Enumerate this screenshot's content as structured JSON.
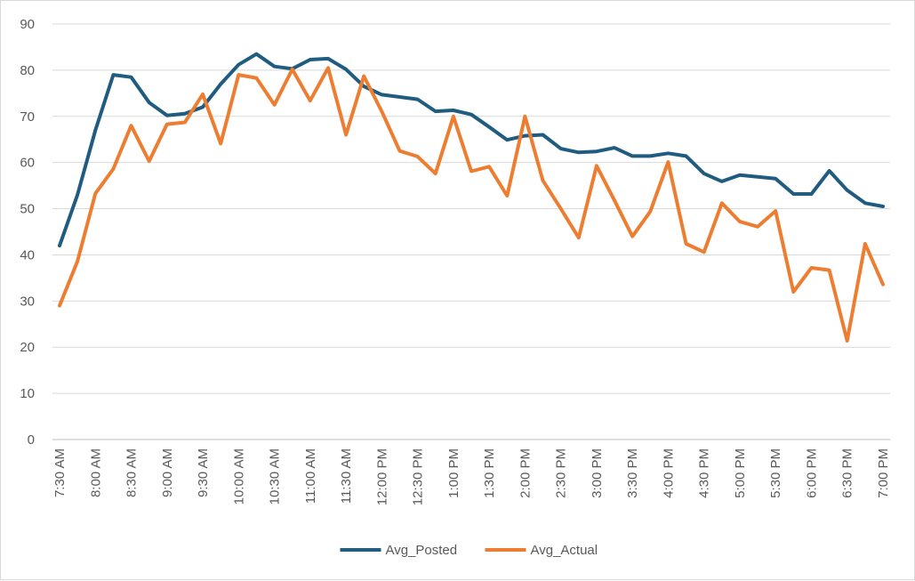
{
  "chart_data": {
    "type": "line",
    "title": "",
    "xlabel": "",
    "ylabel": "",
    "ylim": [
      0,
      90
    ],
    "y_ticks": [
      0,
      10,
      20,
      30,
      40,
      50,
      60,
      70,
      80,
      90
    ],
    "grid": true,
    "legend_position": "bottom",
    "x": [
      "7:30 AM",
      "7:45 AM",
      "8:00 AM",
      "8:15 AM",
      "8:30 AM",
      "8:45 AM",
      "9:00 AM",
      "9:15 AM",
      "9:30 AM",
      "9:45 AM",
      "10:00 AM",
      "10:15 AM",
      "10:30 AM",
      "10:45 AM",
      "11:00 AM",
      "11:15 AM",
      "11:30 AM",
      "11:45 AM",
      "12:00 PM",
      "12:15 PM",
      "12:30 PM",
      "12:45 PM",
      "1:00 PM",
      "1:15 PM",
      "1:30 PM",
      "1:45 PM",
      "2:00 PM",
      "2:15 PM",
      "2:30 PM",
      "2:45 PM",
      "3:00 PM",
      "3:15 PM",
      "3:30 PM",
      "3:45 PM",
      "4:00 PM",
      "4:15 PM",
      "4:30 PM",
      "4:45 PM",
      "5:00 PM",
      "5:15 PM",
      "5:30 PM",
      "5:45 PM",
      "6:00 PM",
      "6:15 PM",
      "6:30 PM",
      "6:45 PM",
      "7:00 PM"
    ],
    "x_tick_labels": [
      "7:30 AM",
      "8:00 AM",
      "8:30 AM",
      "9:00 AM",
      "9:30 AM",
      "10:00 AM",
      "10:30 AM",
      "11:00 AM",
      "11:30 AM",
      "12:00 PM",
      "12:30 PM",
      "1:00 PM",
      "1:30 PM",
      "2:00 PM",
      "2:30 PM",
      "3:00 PM",
      "3:30 PM",
      "4:00 PM",
      "4:30 PM",
      "5:00 PM",
      "5:30 PM",
      "6:00 PM",
      "6:30 PM",
      "7:00 PM"
    ],
    "series": [
      {
        "name": "Avg_Posted",
        "color": "#1f5c7f",
        "values": [
          42,
          53,
          67,
          79,
          78.5,
          73,
          70.2,
          70.6,
          72,
          77,
          81.2,
          83.5,
          80.8,
          80.3,
          82.3,
          82.5,
          80.2,
          76.5,
          74.7,
          74.2,
          73.7,
          71.1,
          71.3,
          70.4,
          67.7,
          64.9,
          65.8,
          66,
          63,
          62.2,
          62.4,
          63.2,
          61.4,
          61.4,
          62,
          61.4,
          57.6,
          55.9,
          57.3,
          56.9,
          56.5,
          53.2,
          53.2,
          58.2,
          54,
          51.2,
          50.5
        ]
      },
      {
        "name": "Avg_Actual",
        "color": "#ed7d31",
        "values": [
          29,
          38.6,
          53.3,
          58.6,
          68,
          60.3,
          68.3,
          68.7,
          74.8,
          64.1,
          79,
          78.3,
          72.5,
          80.2,
          73.4,
          80.5,
          66,
          78.7,
          71.1,
          62.5,
          61.3,
          57.6,
          70,
          58.1,
          59.1,
          52.8,
          70,
          56.1,
          50,
          43.7,
          59.3,
          51.8,
          44,
          49.4,
          60.1,
          42.4,
          40.6,
          51.2,
          47.2,
          46.1,
          49.5,
          32,
          37.2,
          36.7,
          21.4,
          42.4,
          33.6
        ]
      }
    ]
  }
}
